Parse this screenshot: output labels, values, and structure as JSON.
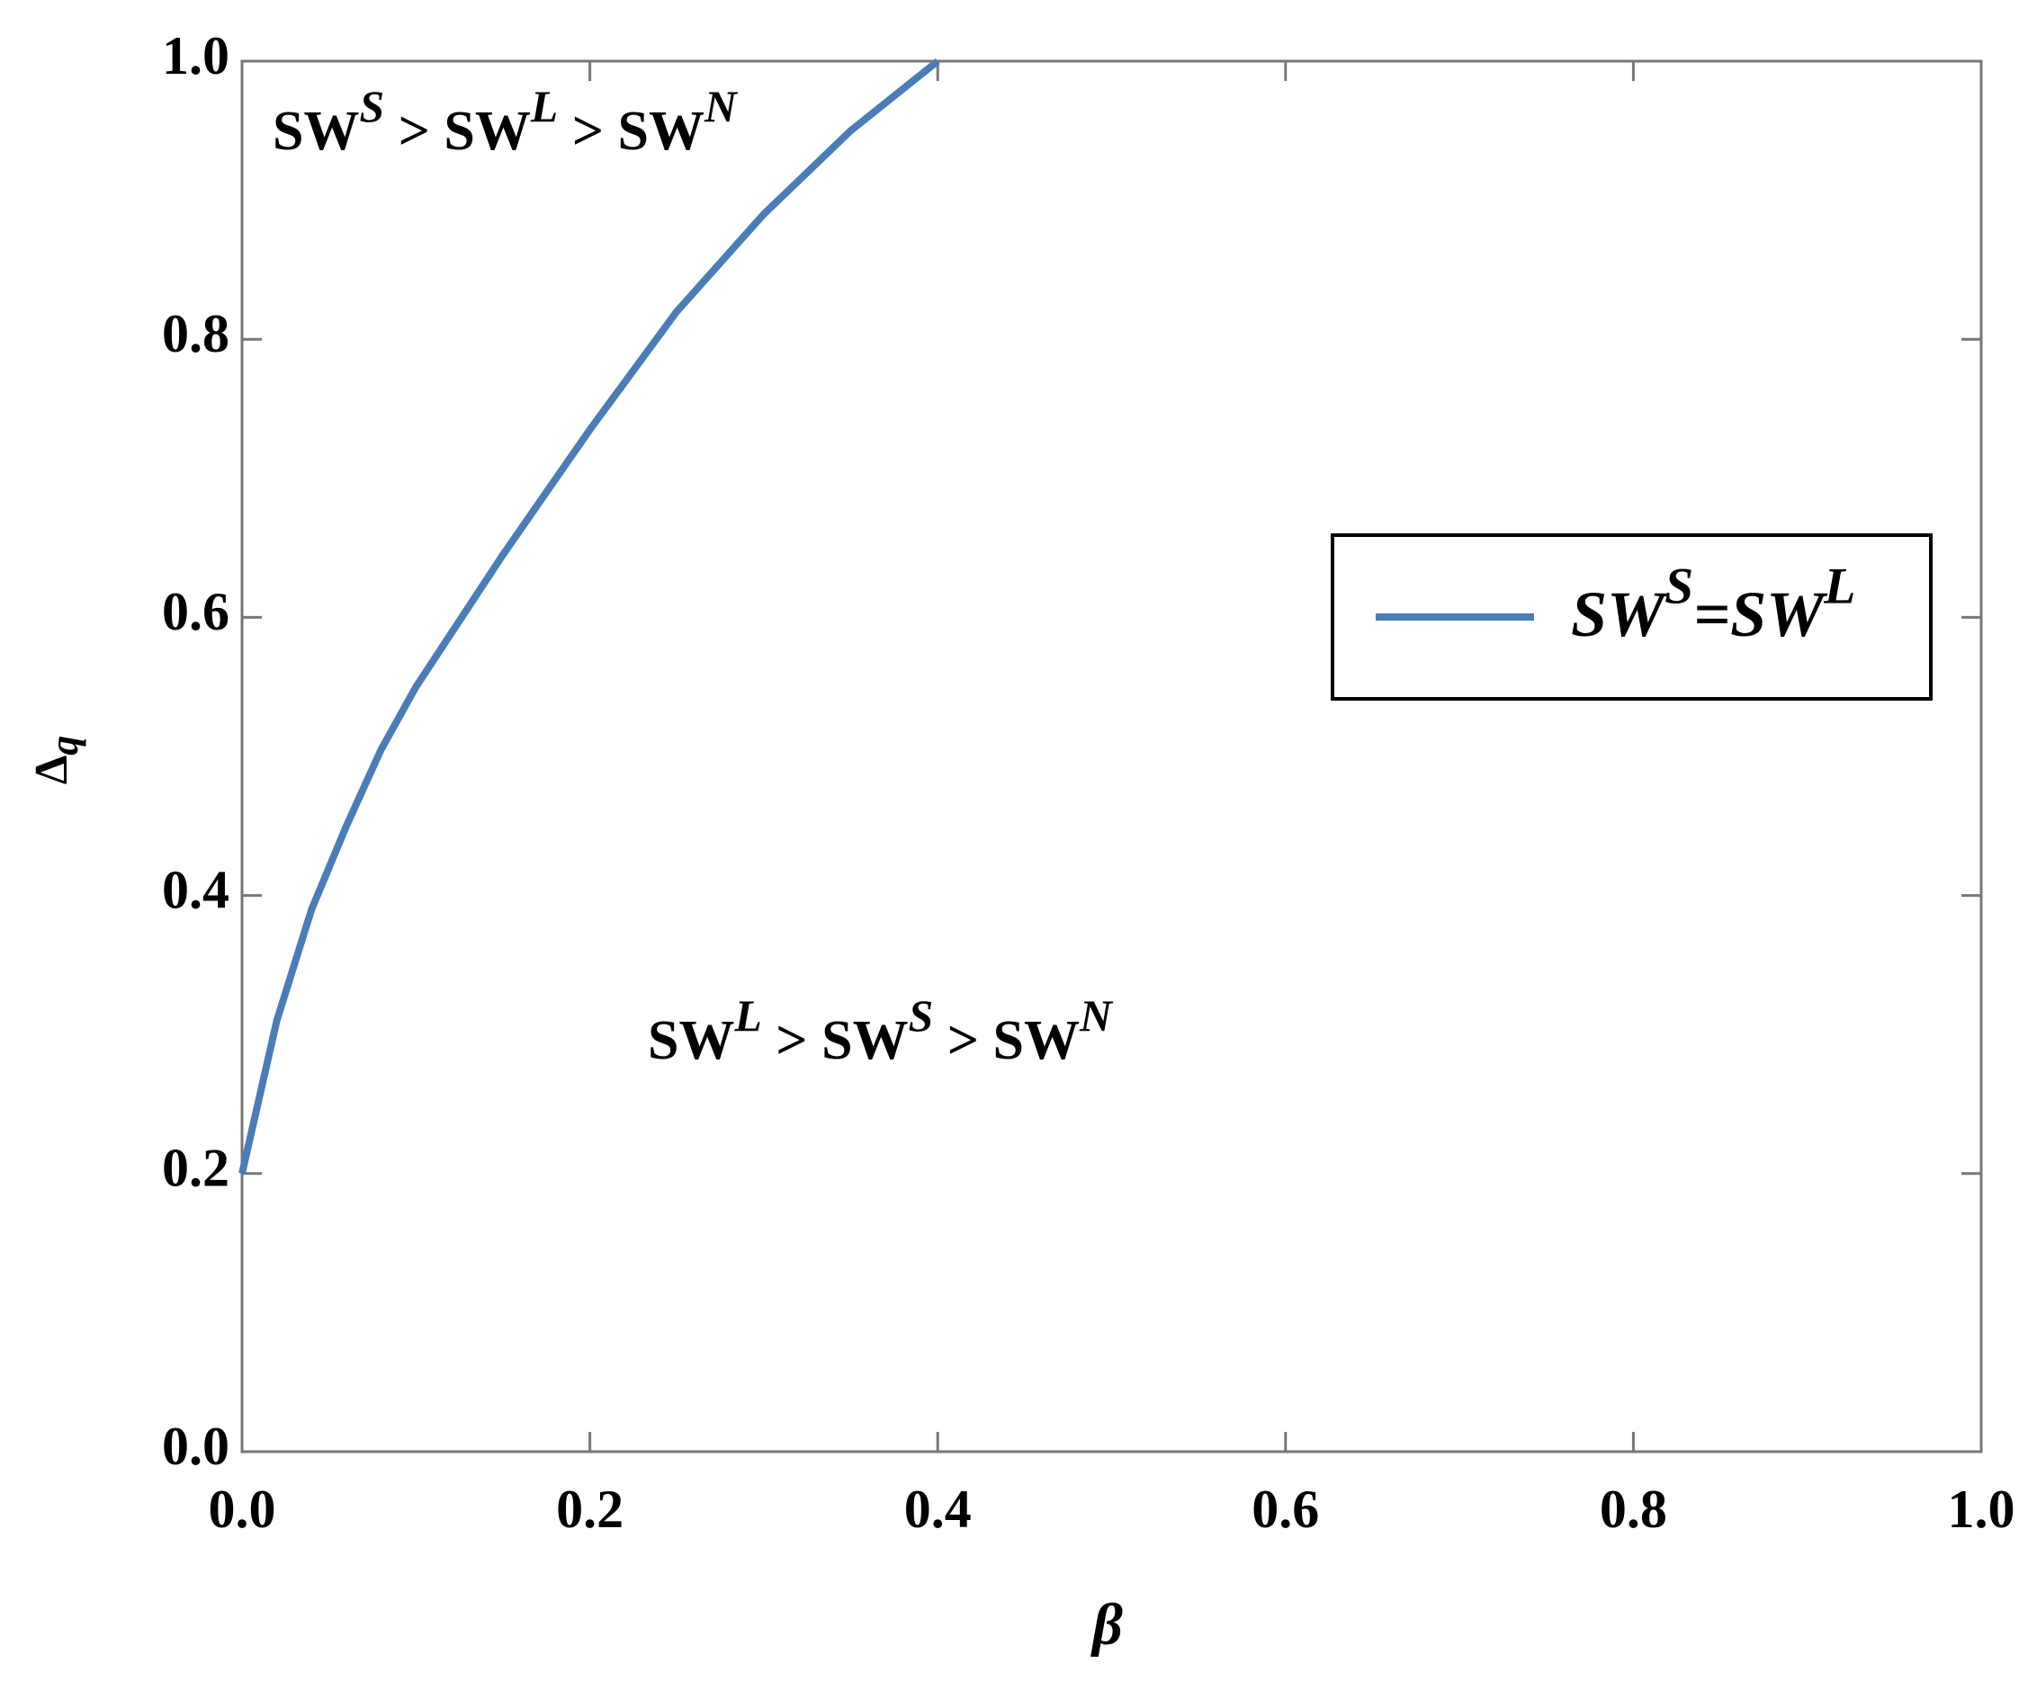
{
  "chart_data": {
    "type": "line",
    "xlabel": "β",
    "ylabel": [
      "Δ",
      "q"
    ],
    "x": [
      0,
      0.02,
      0.04,
      0.06,
      0.08,
      0.1,
      0.15,
      0.2,
      0.25,
      0.3,
      0.35,
      0.4
    ],
    "series": [
      {
        "name": [
          "SW",
          "S",
          "=SW",
          "L"
        ],
        "color": "#4a7db8",
        "values": [
          0.2,
          0.31,
          0.39,
          0.45,
          0.505,
          0.55,
          0.645,
          0.735,
          0.82,
          0.89,
          0.95,
          1.0
        ]
      }
    ],
    "xlim": [
      0,
      1
    ],
    "ylim": [
      0,
      1
    ],
    "xticks": [
      {
        "value": 0,
        "label": "0.0"
      },
      0.2,
      0.4,
      0.6,
      0.8,
      {
        "value": 1,
        "label": "1.0"
      }
    ],
    "yticks": [
      {
        "value": 0,
        "label": "0.0"
      },
      0.2,
      0.4,
      0.6,
      0.8,
      {
        "value": 1,
        "label": "1.0"
      }
    ],
    "legend": "right",
    "annotations": [
      [
        "SW",
        "S",
        " > SW",
        "L",
        " > SW",
        "N"
      ],
      [
        "SW",
        "L",
        " > SW",
        "S",
        " > SW",
        "N"
      ]
    ]
  }
}
